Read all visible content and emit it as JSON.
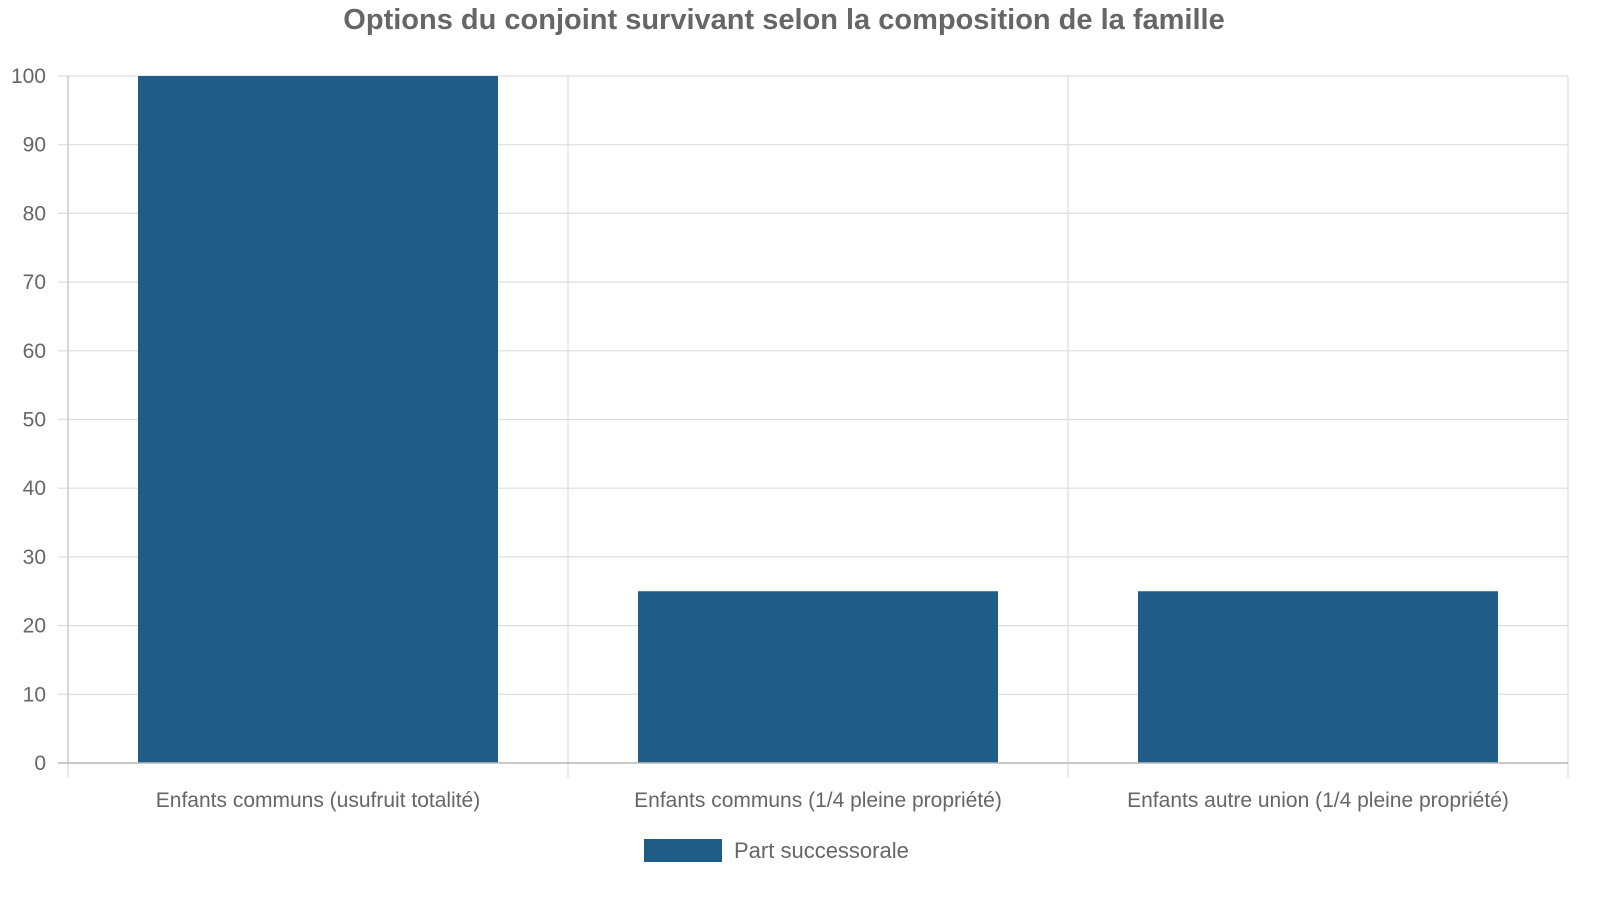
{
  "chart_data": {
    "type": "bar",
    "title": "Options du conjoint survivant selon la composition de la famille",
    "categories": [
      "Enfants communs (usufruit totalité)",
      "Enfants communs (1/4 pleine propriété)",
      "Enfants autre union (1/4 pleine propriété)"
    ],
    "series": [
      {
        "name": "Part successorale",
        "values": [
          100,
          25,
          25
        ],
        "color": "#1f5c87"
      }
    ],
    "ylim": [
      0,
      100
    ],
    "yticks": [
      0,
      10,
      20,
      30,
      40,
      50,
      60,
      70,
      80,
      90,
      100
    ],
    "grid": true,
    "legend_position": "bottom"
  }
}
